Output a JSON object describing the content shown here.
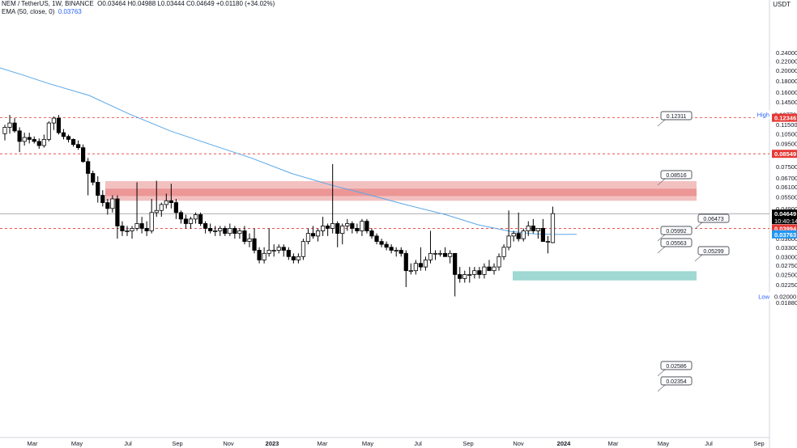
{
  "legend": {
    "symbol": "NEM / TetherUS, 1W, BINANCE",
    "ohlc": "O0.03464 H0.04988 L0.03444 C0.04649 +0.01180 (+34.02%)",
    "ema_label": "EMA (50, close, 0)",
    "ema_value": "0.03763"
  },
  "currency": "USDT",
  "colors": {
    "up": "#ffffff",
    "down": "#000000",
    "ema": "#5aa7e8",
    "resistance_zone": "#e57373",
    "support_zone": "#80cbc4",
    "dashed_line": "#e53935",
    "current_price": "#000000",
    "high_low_label": "#2962ff"
  },
  "chart_data": {
    "type": "candlestick",
    "title": "NEM / TetherUS, 1W, BINANCE",
    "y_scale": "log",
    "ylim": [
      0.0174,
      0.283
    ],
    "y_ticks": [
      "0.24000",
      "0.22000",
      "0.20000",
      "0.18000",
      "0.16000",
      "0.14500",
      "0.12770",
      "0.11500",
      "0.10500",
      "0.09500",
      "0.08549",
      "0.07500",
      "0.06700",
      "0.06100",
      "0.05500",
      "0.04900",
      "0.04300",
      "0.03600",
      "0.03300",
      "0.03000",
      "0.02750",
      "0.02500",
      "0.02250",
      "0.02000",
      "0.01880"
    ],
    "x_ticks": [
      "Mar",
      "May",
      "Jul",
      "Sep",
      "Nov",
      "2023",
      "Mar",
      "May",
      "Jul",
      "Sep",
      "Nov",
      "2024",
      "Mar",
      "May",
      "Jul",
      "Sep"
    ],
    "price_labels": [
      {
        "text": "0.12770",
        "kind": "high",
        "tag": "High"
      },
      {
        "text": "0.12346",
        "kind": "red"
      },
      {
        "text": "0.08549",
        "kind": "red"
      },
      {
        "text": "0.04649",
        "kind": "current",
        "sub": "10:40:14"
      },
      {
        "text": "0.03994",
        "kind": "red"
      },
      {
        "text": "0.03763",
        "kind": "ema"
      },
      {
        "text": "0.02000",
        "kind": "low",
        "tag": "Low"
      }
    ],
    "callouts": [
      "0.12311",
      "0.08516",
      "0.06473",
      "0.05992",
      "0.05563",
      "0.05299",
      "0.02586",
      "0.02354"
    ],
    "horizontal_lines": [
      0.12346,
      0.08549,
      0.03994
    ],
    "current_price": 0.04649,
    "zones": [
      {
        "name": "resistance",
        "low": 0.05299,
        "high": 0.06473,
        "inner_low": 0.05563,
        "inner_high": 0.05992
      },
      {
        "name": "support",
        "low": 0.02354,
        "high": 0.02586
      }
    ],
    "candles": [
      [
        0.105,
        0.115,
        0.098,
        0.112
      ],
      [
        0.112,
        0.127,
        0.105,
        0.117
      ],
      [
        0.117,
        0.123,
        0.106,
        0.108
      ],
      [
        0.108,
        0.112,
        0.087,
        0.097
      ],
      [
        0.097,
        0.106,
        0.093,
        0.101
      ],
      [
        0.101,
        0.106,
        0.095,
        0.099
      ],
      [
        0.099,
        0.102,
        0.095,
        0.097
      ],
      [
        0.097,
        0.1,
        0.09,
        0.093
      ],
      [
        0.093,
        0.104,
        0.091,
        0.099
      ],
      [
        0.099,
        0.119,
        0.097,
        0.117
      ],
      [
        0.117,
        0.125,
        0.109,
        0.123
      ],
      [
        0.123,
        0.127,
        0.104,
        0.106
      ],
      [
        0.106,
        0.11,
        0.099,
        0.102
      ],
      [
        0.102,
        0.104,
        0.096,
        0.099
      ],
      [
        0.099,
        0.1,
        0.092,
        0.094
      ],
      [
        0.094,
        0.098,
        0.089,
        0.091
      ],
      [
        0.091,
        0.094,
        0.078,
        0.079
      ],
      [
        0.079,
        0.082,
        0.056,
        0.07
      ],
      [
        0.07,
        0.072,
        0.062,
        0.064
      ],
      [
        0.064,
        0.068,
        0.052,
        0.056
      ],
      [
        0.056,
        0.059,
        0.05,
        0.052
      ],
      [
        0.052,
        0.054,
        0.046,
        0.049
      ],
      [
        0.049,
        0.056,
        0.047,
        0.054
      ],
      [
        0.054,
        0.056,
        0.036,
        0.041
      ],
      [
        0.041,
        0.043,
        0.037,
        0.039
      ],
      [
        0.039,
        0.041,
        0.037,
        0.039
      ],
      [
        0.039,
        0.041,
        0.036,
        0.04
      ],
      [
        0.04,
        0.064,
        0.039,
        0.042
      ],
      [
        0.042,
        0.045,
        0.038,
        0.04
      ],
      [
        0.04,
        0.043,
        0.037,
        0.039
      ],
      [
        0.039,
        0.054,
        0.038,
        0.047
      ],
      [
        0.047,
        0.065,
        0.045,
        0.048
      ],
      [
        0.048,
        0.052,
        0.045,
        0.051
      ],
      [
        0.051,
        0.057,
        0.049,
        0.053
      ],
      [
        0.053,
        0.063,
        0.049,
        0.052
      ],
      [
        0.052,
        0.054,
        0.044,
        0.047
      ],
      [
        0.047,
        0.048,
        0.042,
        0.044
      ],
      [
        0.044,
        0.046,
        0.04,
        0.042
      ],
      [
        0.042,
        0.045,
        0.04,
        0.044
      ],
      [
        0.044,
        0.047,
        0.042,
        0.046
      ],
      [
        0.046,
        0.047,
        0.041,
        0.042
      ],
      [
        0.042,
        0.043,
        0.038,
        0.04
      ],
      [
        0.04,
        0.042,
        0.038,
        0.039
      ],
      [
        0.039,
        0.041,
        0.037,
        0.039
      ],
      [
        0.039,
        0.041,
        0.037,
        0.04
      ],
      [
        0.04,
        0.041,
        0.037,
        0.038
      ],
      [
        0.038,
        0.042,
        0.037,
        0.04
      ],
      [
        0.04,
        0.041,
        0.036,
        0.038
      ],
      [
        0.038,
        0.04,
        0.036,
        0.039
      ],
      [
        0.039,
        0.041,
        0.034,
        0.035
      ],
      [
        0.035,
        0.038,
        0.033,
        0.036
      ],
      [
        0.036,
        0.04,
        0.031,
        0.032
      ],
      [
        0.032,
        0.033,
        0.028,
        0.029
      ],
      [
        0.029,
        0.033,
        0.028,
        0.031
      ],
      [
        0.031,
        0.04,
        0.03,
        0.032
      ],
      [
        0.032,
        0.034,
        0.03,
        0.032
      ],
      [
        0.032,
        0.034,
        0.031,
        0.033
      ],
      [
        0.033,
        0.034,
        0.03,
        0.032
      ],
      [
        0.032,
        0.033,
        0.029,
        0.03
      ],
      [
        0.03,
        0.031,
        0.028,
        0.029
      ],
      [
        0.029,
        0.031,
        0.028,
        0.03
      ],
      [
        0.03,
        0.036,
        0.029,
        0.035
      ],
      [
        0.035,
        0.04,
        0.034,
        0.038
      ],
      [
        0.038,
        0.041,
        0.036,
        0.037
      ],
      [
        0.037,
        0.04,
        0.035,
        0.039
      ],
      [
        0.039,
        0.045,
        0.037,
        0.041
      ],
      [
        0.041,
        0.042,
        0.037,
        0.04
      ],
      [
        0.04,
        0.077,
        0.038,
        0.042
      ],
      [
        0.042,
        0.043,
        0.033,
        0.038
      ],
      [
        0.038,
        0.042,
        0.034,
        0.041
      ],
      [
        0.041,
        0.044,
        0.039,
        0.042
      ],
      [
        0.042,
        0.043,
        0.038,
        0.04
      ],
      [
        0.04,
        0.042,
        0.038,
        0.039
      ],
      [
        0.039,
        0.044,
        0.037,
        0.043
      ],
      [
        0.043,
        0.044,
        0.038,
        0.039
      ],
      [
        0.039,
        0.04,
        0.036,
        0.037
      ],
      [
        0.037,
        0.038,
        0.034,
        0.035
      ],
      [
        0.035,
        0.036,
        0.033,
        0.034
      ],
      [
        0.034,
        0.035,
        0.032,
        0.033
      ],
      [
        0.033,
        0.034,
        0.031,
        0.032
      ],
      [
        0.032,
        0.033,
        0.03,
        0.032
      ],
      [
        0.032,
        0.033,
        0.03,
        0.031
      ],
      [
        0.031,
        0.032,
        0.022,
        0.026
      ],
      [
        0.026,
        0.028,
        0.025,
        0.026
      ],
      [
        0.026,
        0.029,
        0.025,
        0.028
      ],
      [
        0.028,
        0.033,
        0.026,
        0.027
      ],
      [
        0.027,
        0.03,
        0.026,
        0.029
      ],
      [
        0.029,
        0.039,
        0.028,
        0.031
      ],
      [
        0.031,
        0.032,
        0.029,
        0.031
      ],
      [
        0.031,
        0.032,
        0.03,
        0.031
      ],
      [
        0.031,
        0.033,
        0.03,
        0.03
      ],
      [
        0.03,
        0.032,
        0.028,
        0.031
      ],
      [
        0.031,
        0.03,
        0.02,
        0.025
      ],
      [
        0.025,
        0.027,
        0.023,
        0.024
      ],
      [
        0.024,
        0.026,
        0.023,
        0.025
      ],
      [
        0.025,
        0.027,
        0.023,
        0.025
      ],
      [
        0.025,
        0.027,
        0.024,
        0.026
      ],
      [
        0.026,
        0.027,
        0.024,
        0.025
      ],
      [
        0.025,
        0.028,
        0.024,
        0.027
      ],
      [
        0.027,
        0.029,
        0.026,
        0.026
      ],
      [
        0.026,
        0.028,
        0.025,
        0.027
      ],
      [
        0.027,
        0.031,
        0.026,
        0.03
      ],
      [
        0.03,
        0.034,
        0.029,
        0.033
      ],
      [
        0.033,
        0.048,
        0.032,
        0.037
      ],
      [
        0.037,
        0.039,
        0.035,
        0.038
      ],
      [
        0.038,
        0.047,
        0.035,
        0.036
      ],
      [
        0.036,
        0.04,
        0.035,
        0.039
      ],
      [
        0.039,
        0.043,
        0.037,
        0.041
      ],
      [
        0.041,
        0.044,
        0.038,
        0.039
      ],
      [
        0.039,
        0.04,
        0.036,
        0.04
      ],
      [
        0.04,
        0.044,
        0.036,
        0.035
      ],
      [
        0.035,
        0.037,
        0.031,
        0.035
      ],
      [
        0.0346,
        0.0499,
        0.0344,
        0.0465
      ]
    ]
  }
}
